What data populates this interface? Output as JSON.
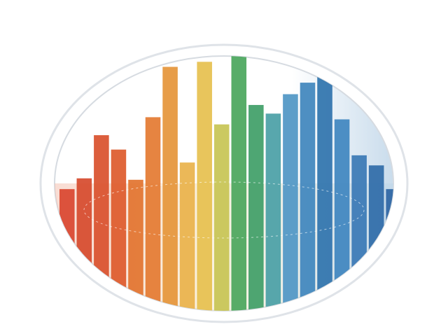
{
  "chart_data": {
    "type": "bar",
    "values": [
      175,
      190,
      250,
      230,
      188,
      275,
      345,
      212,
      352,
      265,
      363,
      292,
      280,
      307,
      323,
      345,
      272,
      222,
      208,
      175
    ],
    "colors": [
      "#d9452f",
      "#d64a2c",
      "#d9502c",
      "#dd5a2b",
      "#e2732f",
      "#e47a31",
      "#e5953a",
      "#e9b24a",
      "#e6c04e",
      "#c7c454",
      "#4aa65c",
      "#3f9e67",
      "#4a9fa6",
      "#4f96c4",
      "#3f85bd",
      "#2f73ad",
      "#3f86bf",
      "#3a78b5",
      "#2f6ba8",
      "#2d65a3"
    ]
  }
}
